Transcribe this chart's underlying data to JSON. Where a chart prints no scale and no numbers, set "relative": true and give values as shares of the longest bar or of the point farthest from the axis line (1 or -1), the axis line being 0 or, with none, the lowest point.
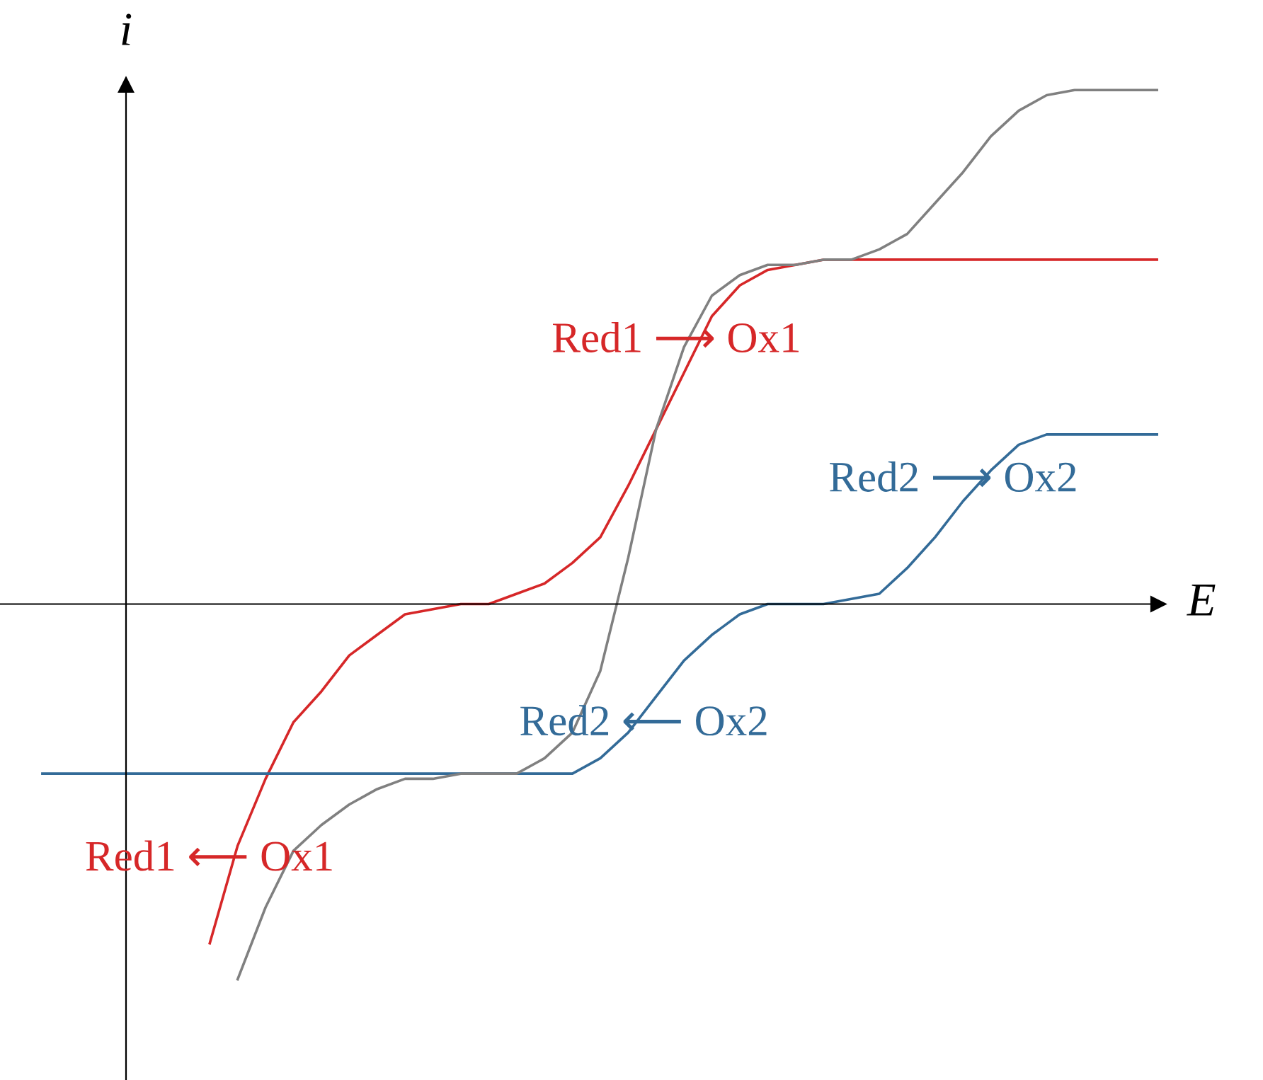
{
  "chart_data": {
    "type": "line",
    "relative": true,
    "xlabel": "E",
    "ylabel": "i",
    "categories": [
      null,
      null,
      null,
      null,
      null,
      null,
      null,
      null,
      null,
      null,
      null,
      null,
      null,
      null,
      null,
      null,
      null,
      null,
      null,
      null,
      null,
      null,
      null,
      null,
      null,
      null,
      null,
      null,
      null,
      null,
      null,
      null,
      null,
      null,
      null,
      null,
      null,
      null,
      null,
      null,
      null
    ],
    "series": [
      {
        "color": "#d62728",
        "values": [
          null,
          null,
          null,
          null,
          null,
          null,
          -0.66,
          -0.47,
          -0.34,
          -0.23,
          -0.17,
          -0.1,
          -0.06,
          -0.02,
          -0.01,
          0,
          0,
          0.02,
          0.04,
          0.08,
          0.13,
          0.23,
          0.34,
          0.45,
          0.56,
          0.62,
          0.65,
          0.66,
          0.67,
          0.67,
          0.67,
          0.67,
          0.67,
          0.67,
          0.67,
          0.67,
          0.67,
          0.67,
          0.67,
          0.67,
          0.67
        ]
      },
      {
        "color": "#336b98",
        "values": [
          -0.33,
          -0.33,
          -0.33,
          -0.33,
          -0.33,
          -0.33,
          -0.33,
          -0.33,
          -0.33,
          -0.33,
          -0.33,
          -0.33,
          -0.33,
          -0.33,
          -0.33,
          -0.33,
          -0.33,
          -0.33,
          -0.33,
          -0.33,
          -0.3,
          -0.25,
          -0.18,
          -0.11,
          -0.06,
          -0.02,
          0,
          0,
          0,
          0.01,
          0.02,
          0.07,
          0.13,
          0.2,
          0.26,
          0.31,
          0.33,
          0.33,
          0.33,
          0.33,
          0.33
        ]
      },
      {
        "color": "#808080",
        "values": [
          null,
          null,
          null,
          null,
          null,
          null,
          null,
          -0.73,
          -0.59,
          -0.48,
          -0.43,
          -0.39,
          -0.36,
          -0.34,
          -0.34,
          -0.33,
          -0.33,
          -0.33,
          -0.3,
          -0.25,
          -0.13,
          0.09,
          0.34,
          0.5,
          0.6,
          0.64,
          0.66,
          0.66,
          0.67,
          0.67,
          0.69,
          0.72,
          0.78,
          0.84,
          0.91,
          0.96,
          0.99,
          1,
          1,
          1,
          1
        ]
      }
    ],
    "annotations": [
      "Red1 ⟶ Ox1",
      "Red2 ⟶ Ox2",
      "Red2 ⟵ Ox2",
      "Red1 ⟵ Ox1"
    ]
  }
}
